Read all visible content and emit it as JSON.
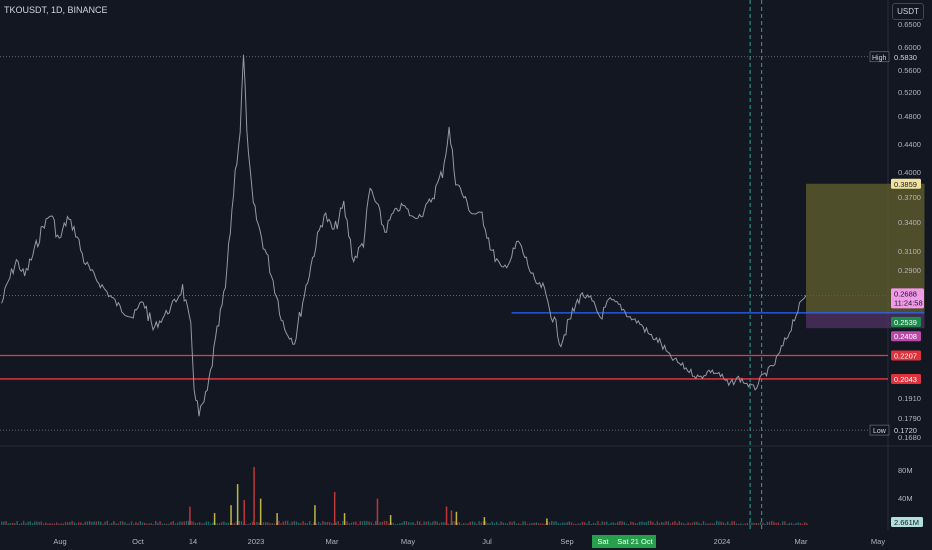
{
  "header": {
    "symbol_line": "TKOUSDT, 1D, BINANCE",
    "currency_button": "USDT"
  },
  "colors": {
    "background": "#131722",
    "price_line": "#9598a1",
    "support_line": "#f23645",
    "entry_line": "#2962ff",
    "profit_zone": "#63612e",
    "loss_zone": "#4a2f5a",
    "volume_up": "#26a69a",
    "volume_down": "#ef5350"
  },
  "chart_data": [
    {
      "type": "line",
      "title": "TKOUSDT, 1D, BINANCE",
      "xlabel": "",
      "ylabel": "",
      "ylim": [
        0.168,
        0.68
      ],
      "y_ticks": [
        "0.6500",
        "0.6000",
        "0.5600",
        "0.5200",
        "0.4800",
        "0.4400",
        "0.4000",
        "0.3700",
        "0.3400",
        "0.3100",
        "0.2900",
        "0.2700",
        "0.2350",
        "0.1910",
        "0.1790",
        "0.1680"
      ],
      "x_tick_labels": [
        "Aug",
        "Oct",
        "14",
        "2023",
        "Mar",
        "May",
        "Jul",
        "Sep",
        "Sat",
        "Sat 21 Oct",
        "2024",
        "Mar",
        "May"
      ],
      "grid": false,
      "series": [
        {
          "x": [
            "2022-07-16",
            "2022-07-20",
            "2022-07-25",
            "2022-07-30",
            "2022-08-05",
            "2022-08-10",
            "2022-08-15",
            "2022-08-20",
            "2022-08-25",
            "2022-08-30",
            "2022-09-04",
            "2022-09-10",
            "2022-09-16",
            "2022-09-22",
            "2022-09-28",
            "2022-10-04",
            "2022-10-10",
            "2022-10-16",
            "2022-10-22",
            "2022-10-28",
            "2022-11-03",
            "2022-11-08",
            "2022-11-10",
            "2022-11-13",
            "2022-11-18",
            "2022-11-23",
            "2022-11-29",
            "2022-12-05",
            "2022-12-08",
            "2022-12-10",
            "2022-12-13",
            "2022-12-16",
            "2022-12-20",
            "2022-12-25",
            "2022-12-30",
            "2023-01-04",
            "2023-01-10",
            "2023-01-16",
            "2023-01-22",
            "2023-01-28",
            "2023-02-03",
            "2023-02-09",
            "2023-02-15",
            "2023-02-21",
            "2023-02-25",
            "2023-03-01",
            "2023-03-06",
            "2023-03-11",
            "2023-03-17",
            "2023-03-23",
            "2023-03-29",
            "2023-04-04",
            "2023-04-10",
            "2023-04-14",
            "2023-04-18",
            "2023-04-23",
            "2023-04-28",
            "2023-05-04",
            "2023-05-10",
            "2023-05-16",
            "2023-05-21",
            "2023-05-26",
            "2023-05-31",
            "2023-06-05",
            "2023-06-10",
            "2023-06-15",
            "2023-06-21",
            "2023-06-27",
            "2023-07-03",
            "2023-07-09",
            "2023-07-15",
            "2023-07-21",
            "2023-07-27",
            "2023-08-02",
            "2023-08-08",
            "2023-08-14",
            "2023-08-20",
            "2023-08-26",
            "2023-09-01",
            "2023-09-07",
            "2023-09-13",
            "2023-09-19",
            "2023-09-25",
            "2023-10-01",
            "2023-10-07",
            "2023-10-13",
            "2023-10-17",
            "2023-10-21",
            "2023-10-25",
            "2023-10-29",
            "2023-11-02",
            "2023-11-06",
            "2023-11-10",
            "2023-11-14",
            "2023-11-17"
          ],
          "values": [
            0.262,
            0.28,
            0.3,
            0.285,
            0.31,
            0.335,
            0.35,
            0.32,
            0.345,
            0.33,
            0.3,
            0.285,
            0.275,
            0.265,
            0.255,
            0.25,
            0.265,
            0.24,
            0.25,
            0.26,
            0.275,
            0.24,
            0.2,
            0.18,
            0.195,
            0.23,
            0.275,
            0.4,
            0.46,
            0.583,
            0.42,
            0.36,
            0.33,
            0.3,
            0.27,
            0.24,
            0.23,
            0.27,
            0.31,
            0.35,
            0.33,
            0.36,
            0.3,
            0.32,
            0.38,
            0.36,
            0.33,
            0.35,
            0.36,
            0.345,
            0.35,
            0.37,
            0.4,
            0.46,
            0.39,
            0.37,
            0.35,
            0.35,
            0.31,
            0.29,
            0.3,
            0.32,
            0.3,
            0.28,
            0.275,
            0.255,
            0.23,
            0.25,
            0.27,
            0.265,
            0.25,
            0.265,
            0.26,
            0.25,
            0.245,
            0.235,
            0.23,
            0.22,
            0.215,
            0.21,
            0.205,
            0.21,
            0.208,
            0.2,
            0.205,
            0.2,
            0.198,
            0.205,
            0.21,
            0.215,
            0.225,
            0.235,
            0.25,
            0.262,
            0.2688
          ]
        }
      ],
      "price_labels": {
        "high": {
          "label": "High",
          "value": "0.5830"
        },
        "low": {
          "label": "Low",
          "value": "0.1720"
        },
        "target": "0.3859",
        "last": "0.2688",
        "countdown": "11:24:58",
        "entry": "0.2539",
        "stop": "0.2408",
        "support_1": "0.2207",
        "support_2": "0.2043"
      },
      "levels": {
        "high": 0.583,
        "low": 0.172,
        "target": 0.3859,
        "last": 0.2688,
        "entry": 0.2539,
        "stop": 0.2408,
        "support_1": 0.2207,
        "support_2": 0.2043
      },
      "position_tool": {
        "start_date": "2023-11-17",
        "end_date": "2024-01-28"
      },
      "entry_line_dates": [
        "2023-05-22",
        "2024-01-28"
      ],
      "vertical_markers": [
        "2023-10-14",
        "2023-10-21"
      ],
      "volume": {
        "axis_labels": [
          "80M",
          "40M"
        ],
        "last_label": "2.661M",
        "spikes": [
          {
            "date": "2022-11-07",
            "value": 28,
            "dir": "down"
          },
          {
            "date": "2022-11-22",
            "value": 18,
            "dir": "up"
          },
          {
            "date": "2022-12-02",
            "value": 30,
            "dir": "up"
          },
          {
            "date": "2022-12-06",
            "value": 62,
            "dir": "up"
          },
          {
            "date": "2022-12-10",
            "value": 38,
            "dir": "down"
          },
          {
            "date": "2022-12-16",
            "value": 88,
            "dir": "down"
          },
          {
            "date": "2022-12-20",
            "value": 40,
            "dir": "up"
          },
          {
            "date": "2022-12-30",
            "value": 18,
            "dir": "up"
          },
          {
            "date": "2023-01-22",
            "value": 30,
            "dir": "up"
          },
          {
            "date": "2023-02-03",
            "value": 50,
            "dir": "down"
          },
          {
            "date": "2023-02-09",
            "value": 18,
            "dir": "up"
          },
          {
            "date": "2023-03-01",
            "value": 40,
            "dir": "down"
          },
          {
            "date": "2023-03-09",
            "value": 15,
            "dir": "up"
          },
          {
            "date": "2023-04-12",
            "value": 28,
            "dir": "down"
          },
          {
            "date": "2023-04-15",
            "value": 22,
            "dir": "down"
          },
          {
            "date": "2023-04-18",
            "value": 20,
            "dir": "up"
          },
          {
            "date": "2023-05-05",
            "value": 12,
            "dir": "up"
          },
          {
            "date": "2023-06-12",
            "value": 10,
            "dir": "up"
          }
        ]
      }
    }
  ]
}
